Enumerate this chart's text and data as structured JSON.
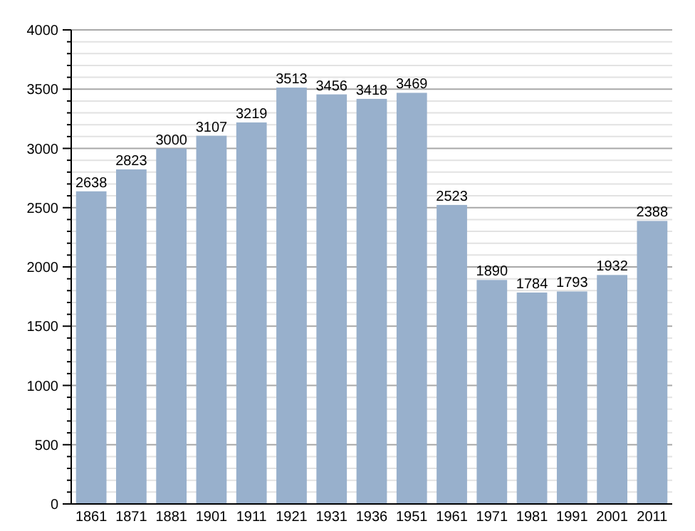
{
  "chart_data": {
    "type": "bar",
    "categories": [
      "1861",
      "1871",
      "1881",
      "1901",
      "1911",
      "1921",
      "1931",
      "1936",
      "1951",
      "1961",
      "1971",
      "1981",
      "1991",
      "2001",
      "2011"
    ],
    "values": [
      2638,
      2823,
      3000,
      3107,
      3219,
      3513,
      3456,
      3418,
      3469,
      2523,
      1890,
      1784,
      1793,
      1932,
      2388
    ],
    "color": "#98b0cc",
    "ylim": [
      0,
      4000
    ],
    "yticks": [
      0,
      {
        "value": 100,
        "label": null
      },
      {
        "value": 200,
        "label": null
      },
      {
        "value": 300,
        "label": null
      },
      {
        "value": 400,
        "label": null
      },
      500,
      {
        "value": 600,
        "label": null
      },
      {
        "value": 700,
        "label": null
      },
      {
        "value": 800,
        "label": null
      },
      {
        "value": 900,
        "label": null
      },
      1000,
      {
        "value": 1100,
        "label": null
      },
      {
        "value": 1200,
        "label": null
      },
      {
        "value": 1300,
        "label": null
      },
      {
        "value": 1400,
        "label": null
      },
      1500,
      {
        "value": 1600,
        "label": null
      },
      {
        "value": 1700,
        "label": null
      },
      {
        "value": 1800,
        "label": null
      },
      {
        "value": 1900,
        "label": null
      },
      2000,
      {
        "value": 2100,
        "label": null
      },
      {
        "value": 2200,
        "label": null
      },
      {
        "value": 2300,
        "label": null
      },
      {
        "value": 2400,
        "label": null
      },
      2500,
      {
        "value": 2600,
        "label": null
      },
      {
        "value": 2700,
        "label": null
      },
      {
        "value": 2800,
        "label": null
      },
      {
        "value": 2900,
        "label": null
      },
      3000,
      {
        "value": 3100,
        "label": null
      },
      {
        "value": 3200,
        "label": null
      },
      {
        "value": 3300,
        "label": null
      },
      {
        "value": 3400,
        "label": null
      },
      3500,
      {
        "value": 3600,
        "label": null
      },
      {
        "value": 3700,
        "label": null
      },
      {
        "value": 3800,
        "label": null
      },
      {
        "value": 3900,
        "label": null
      },
      4000
    ],
    "grid": true,
    "data_labels": true
  }
}
